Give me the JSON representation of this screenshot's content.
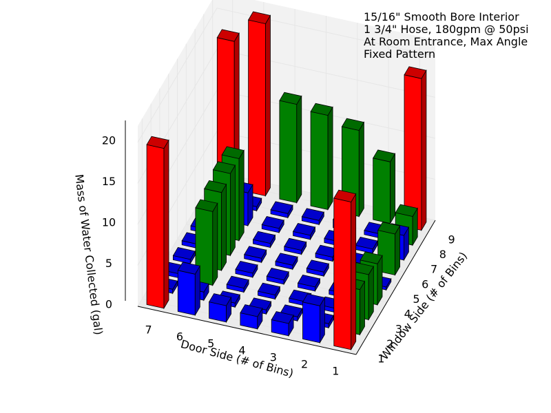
{
  "chart_data": {
    "type": "bar3d",
    "title": [
      "15/16\" Smooth Bore Interior",
      "1 3/4\" Hose, 180gpm @ 50psi",
      "At Room Entrance, Max Angle",
      "Fixed Pattern"
    ],
    "xlabel": "Door Side (# of Bins)",
    "ylabel": "Window Side (# of Bins)",
    "zlabel": "Mass of Water Collected (gal)",
    "x_ticks": [
      "1",
      "2",
      "3",
      "4",
      "5",
      "6",
      "7"
    ],
    "y_ticks": [
      "1",
      "2",
      "3",
      "4",
      "5",
      "6",
      "7",
      "8",
      "9"
    ],
    "z_ticks": [
      "0",
      "5",
      "10",
      "15",
      "20"
    ],
    "zlim": [
      0,
      22
    ],
    "grid": true,
    "colors": {
      "corner": "#ff0000",
      "edge": "#008000",
      "interior": "#0000ff",
      "pane": "#f2f2f2",
      "grid": "#e6e6e6"
    },
    "bars": [
      {
        "x": 1,
        "y": 1,
        "z": 18,
        "group": "corner"
      },
      {
        "x": 1,
        "y": 2,
        "z": 5.5,
        "group": "edge"
      },
      {
        "x": 1,
        "y": 3,
        "z": 5.5,
        "group": "edge"
      },
      {
        "x": 1,
        "y": 4,
        "z": 5,
        "group": "edge"
      },
      {
        "x": 1,
        "y": 5,
        "z": 0,
        "group": "interior"
      },
      {
        "x": 1,
        "y": 6,
        "z": 5,
        "group": "edge"
      },
      {
        "x": 1,
        "y": 7,
        "z": 3,
        "group": "interior"
      },
      {
        "x": 1,
        "y": 8,
        "z": 3.5,
        "group": "edge"
      },
      {
        "x": 1,
        "y": 9,
        "z": 18.5,
        "group": "corner"
      },
      {
        "x": 2,
        "y": 1,
        "z": 4.5,
        "group": "interior"
      },
      {
        "x": 2,
        "y": 2,
        "z": 0.5,
        "group": "interior"
      },
      {
        "x": 2,
        "y": 3,
        "z": 0.5,
        "group": "interior"
      },
      {
        "x": 2,
        "y": 4,
        "z": 0.5,
        "group": "interior"
      },
      {
        "x": 2,
        "y": 5,
        "z": 0.5,
        "group": "interior"
      },
      {
        "x": 2,
        "y": 6,
        "z": 0.5,
        "group": "interior"
      },
      {
        "x": 2,
        "y": 7,
        "z": 0.5,
        "group": "interior"
      },
      {
        "x": 2,
        "y": 8,
        "z": 0.5,
        "group": "interior"
      },
      {
        "x": 2,
        "y": 9,
        "z": 7.5,
        "group": "edge"
      },
      {
        "x": 3,
        "y": 1,
        "z": 1.5,
        "group": "interior"
      },
      {
        "x": 3,
        "y": 2,
        "z": 0.5,
        "group": "interior"
      },
      {
        "x": 3,
        "y": 3,
        "z": 0.5,
        "group": "interior"
      },
      {
        "x": 3,
        "y": 4,
        "z": 0.5,
        "group": "interior"
      },
      {
        "x": 3,
        "y": 5,
        "z": 0.5,
        "group": "interior"
      },
      {
        "x": 3,
        "y": 6,
        "z": 0.5,
        "group": "interior"
      },
      {
        "x": 3,
        "y": 7,
        "z": 0.5,
        "group": "interior"
      },
      {
        "x": 3,
        "y": 8,
        "z": 1.0,
        "group": "interior"
      },
      {
        "x": 3,
        "y": 9,
        "z": 10.5,
        "group": "edge"
      },
      {
        "x": 4,
        "y": 1,
        "z": 1.5,
        "group": "interior"
      },
      {
        "x": 4,
        "y": 2,
        "z": 0.5,
        "group": "interior"
      },
      {
        "x": 4,
        "y": 3,
        "z": 0.5,
        "group": "interior"
      },
      {
        "x": 4,
        "y": 4,
        "z": 0.5,
        "group": "interior"
      },
      {
        "x": 4,
        "y": 5,
        "z": 0.5,
        "group": "interior"
      },
      {
        "x": 4,
        "y": 6,
        "z": 0.5,
        "group": "interior"
      },
      {
        "x": 4,
        "y": 7,
        "z": 0.5,
        "group": "interior"
      },
      {
        "x": 4,
        "y": 8,
        "z": 0.5,
        "group": "interior"
      },
      {
        "x": 4,
        "y": 9,
        "z": 11.5,
        "group": "edge"
      },
      {
        "x": 5,
        "y": 1,
        "z": 2.0,
        "group": "interior"
      },
      {
        "x": 5,
        "y": 2,
        "z": 0.5,
        "group": "interior"
      },
      {
        "x": 5,
        "y": 3,
        "z": 0.5,
        "group": "interior"
      },
      {
        "x": 5,
        "y": 4,
        "z": 0.5,
        "group": "interior"
      },
      {
        "x": 5,
        "y": 5,
        "z": 0.5,
        "group": "interior"
      },
      {
        "x": 5,
        "y": 6,
        "z": 0.5,
        "group": "interior"
      },
      {
        "x": 5,
        "y": 7,
        "z": 0.5,
        "group": "interior"
      },
      {
        "x": 5,
        "y": 8,
        "z": 0.5,
        "group": "interior"
      },
      {
        "x": 5,
        "y": 9,
        "z": 12.0,
        "group": "edge"
      },
      {
        "x": 6,
        "y": 1,
        "z": 5.0,
        "group": "interior"
      },
      {
        "x": 6,
        "y": 2,
        "z": 1.0,
        "group": "interior"
      },
      {
        "x": 6,
        "y": 3,
        "z": 9.0,
        "group": "edge"
      },
      {
        "x": 6,
        "y": 4,
        "z": 9.5,
        "group": "edge"
      },
      {
        "x": 6,
        "y": 5,
        "z": 10.0,
        "group": "edge"
      },
      {
        "x": 6,
        "y": 6,
        "z": 10.0,
        "group": "edge"
      },
      {
        "x": 6,
        "y": 7,
        "z": 4.0,
        "group": "interior"
      },
      {
        "x": 6,
        "y": 8,
        "z": 0.5,
        "group": "interior"
      },
      {
        "x": 6,
        "y": 9,
        "z": 21.0,
        "group": "corner"
      },
      {
        "x": 7,
        "y": 1,
        "z": 19.5,
        "group": "corner"
      },
      {
        "x": 7,
        "y": 2,
        "z": 0.5,
        "group": "interior"
      },
      {
        "x": 7,
        "y": 3,
        "z": 0.5,
        "group": "interior"
      },
      {
        "x": 7,
        "y": 4,
        "z": 0.5,
        "group": "interior"
      },
      {
        "x": 7,
        "y": 5,
        "z": 0.5,
        "group": "interior"
      },
      {
        "x": 7,
        "y": 6,
        "z": 0.5,
        "group": "interior"
      },
      {
        "x": 7,
        "y": 7,
        "z": 0.5,
        "group": "interior"
      },
      {
        "x": 7,
        "y": 8,
        "z": 0.5,
        "group": "interior"
      },
      {
        "x": 7,
        "y": 9,
        "z": 18.0,
        "group": "corner"
      }
    ]
  }
}
